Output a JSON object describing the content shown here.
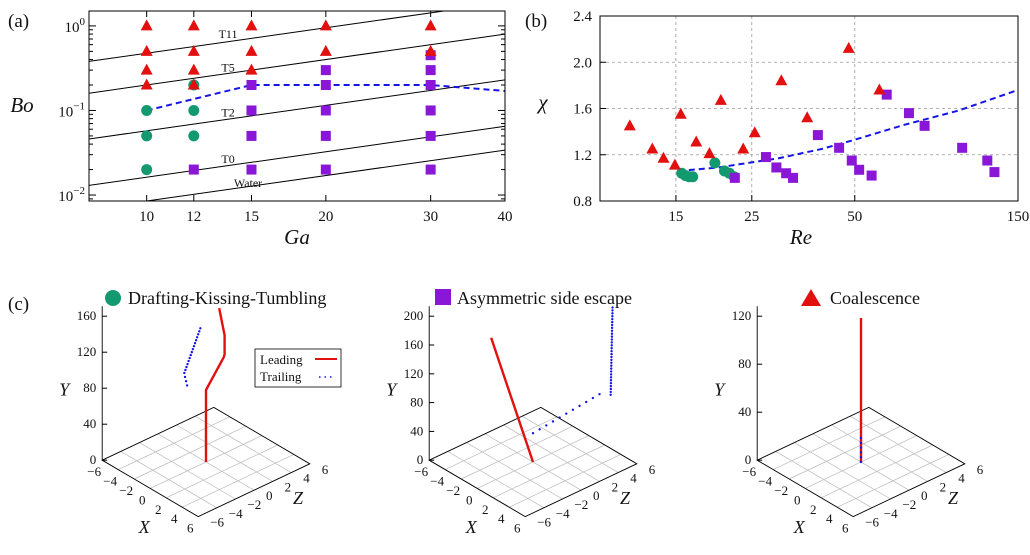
{
  "colors": {
    "dkt": "#13996f",
    "ase": "#8a16d8",
    "coal": "#e31010",
    "fit": "#1515e6",
    "line": "#000000"
  },
  "legend": {
    "dkt": "Drafting-Kissing-Tumbling",
    "ase": "Asymmetric side escape",
    "coal": "Coalescence"
  },
  "chart_data": [
    {
      "panel": "(a)",
      "type": "scatter",
      "xlabel": "Ga",
      "ylabel": "Bo",
      "xscale": "log",
      "yscale": "log",
      "xlim": [
        8,
        40
      ],
      "ylim": [
        0.0085,
        1.5
      ],
      "xticks": [
        "10",
        "12",
        "15",
        "20",
        "30",
        "40"
      ],
      "yticks": [
        {
          "v": 1,
          "label": "10^0"
        },
        {
          "v": 0.1,
          "label": "10^−1"
        },
        {
          "v": 0.01,
          "label": "10^−2"
        }
      ],
      "series": [
        {
          "key": "dkt",
          "marker": "circle",
          "points": [
            [
              10,
              0.1
            ],
            [
              10,
              0.05
            ],
            [
              10,
              0.02
            ],
            [
              12,
              0.2
            ],
            [
              12,
              0.1
            ],
            [
              12,
              0.05
            ]
          ]
        },
        {
          "key": "ase",
          "marker": "square",
          "points": [
            [
              12,
              0.02
            ],
            [
              15,
              0.2
            ],
            [
              15,
              0.1
            ],
            [
              15,
              0.05
            ],
            [
              15,
              0.02
            ],
            [
              20,
              0.3
            ],
            [
              20,
              0.2
            ],
            [
              20,
              0.1
            ],
            [
              20,
              0.05
            ],
            [
              20,
              0.02
            ],
            [
              30,
              0.45
            ],
            [
              30,
              0.3
            ],
            [
              30,
              0.2
            ],
            [
              30,
              0.1
            ],
            [
              30,
              0.05
            ],
            [
              30,
              0.02
            ]
          ]
        },
        {
          "key": "coal",
          "marker": "triangle",
          "points": [
            [
              10,
              1
            ],
            [
              10,
              0.5
            ],
            [
              10,
              0.3
            ],
            [
              10,
              0.2
            ],
            [
              12,
              1
            ],
            [
              12,
              0.5
            ],
            [
              12,
              0.3
            ],
            [
              12,
              0.2
            ],
            [
              15,
              1
            ],
            [
              15,
              0.5
            ],
            [
              15,
              0.3
            ],
            [
              20,
              1
            ],
            [
              20,
              0.5
            ],
            [
              30,
              1
            ],
            [
              30,
              0.5
            ]
          ]
        }
      ],
      "fit_line": [
        [
          10,
          0.1
        ],
        [
          15,
          0.2
        ],
        [
          20,
          0.2
        ],
        [
          30,
          0.2
        ],
        [
          40,
          0.17
        ]
      ],
      "iso_lines": [
        {
          "label": "T11",
          "x": [
            8,
            40
          ],
          "y": [
            0.38,
            1.9
          ],
          "label_at": [
            13.7,
            0.72
          ]
        },
        {
          "label": "T5",
          "x": [
            8,
            40
          ],
          "y": [
            0.16,
            0.8
          ],
          "label_at": [
            13.7,
            0.29
          ]
        },
        {
          "label": "T2",
          "x": [
            8,
            40
          ],
          "y": [
            0.046,
            0.23
          ],
          "label_at": [
            13.7,
            0.085
          ]
        },
        {
          "label": "T0",
          "x": [
            8,
            40
          ],
          "y": [
            0.013,
            0.065
          ],
          "label_at": [
            13.7,
            0.024
          ]
        },
        {
          "label": "Water",
          "x": [
            8,
            40
          ],
          "y": [
            0.0068,
            0.034
          ],
          "label_at": [
            14.8,
            0.0124
          ]
        }
      ]
    },
    {
      "panel": "(b)",
      "type": "scatter",
      "xlabel": "Re",
      "ylabel": "χ",
      "xscale": "log",
      "xlim": [
        9,
        150
      ],
      "ylim": [
        0.8,
        2.4
      ],
      "xticks": [
        "15",
        "25",
        "50",
        "150"
      ],
      "yticks": [
        "0.8",
        "1.2",
        "1.6",
        "2.0",
        "2.4"
      ],
      "grid": true,
      "series": [
        {
          "key": "dkt",
          "marker": "circle",
          "points": [
            [
              15.6,
              1.04
            ],
            [
              16.0,
              1.02
            ],
            [
              16.4,
              1.01
            ],
            [
              16.8,
              1.01
            ],
            [
              19.5,
              1.13
            ],
            [
              20.8,
              1.06
            ],
            [
              21.5,
              1.04
            ],
            [
              22.2,
              1.01
            ]
          ]
        },
        {
          "key": "ase",
          "marker": "square",
          "points": [
            [
              22.3,
              1.0
            ],
            [
              27.5,
              1.18
            ],
            [
              29.5,
              1.09
            ],
            [
              31.5,
              1.04
            ],
            [
              33.0,
              1.0
            ],
            [
              39,
              1.37
            ],
            [
              45,
              1.26
            ],
            [
              49,
              1.15
            ],
            [
              51.5,
              1.07
            ],
            [
              56,
              1.02
            ],
            [
              62,
              1.72
            ],
            [
              72,
              1.56
            ],
            [
              80,
              1.45
            ],
            [
              103,
              1.26
            ],
            [
              122,
              1.15
            ],
            [
              128,
              1.05
            ]
          ]
        },
        {
          "key": "coal",
          "marker": "triangle",
          "points": [
            [
              11,
              1.45
            ],
            [
              12.8,
              1.25
            ],
            [
              13.8,
              1.17
            ],
            [
              14.9,
              1.11
            ],
            [
              15.5,
              1.55
            ],
            [
              17.2,
              1.31
            ],
            [
              18.8,
              1.21
            ],
            [
              20.3,
              1.67
            ],
            [
              23.6,
              1.25
            ],
            [
              25.5,
              1.39
            ],
            [
              30.5,
              1.84
            ],
            [
              36.3,
              1.52
            ],
            [
              48,
              2.12
            ],
            [
              59,
              1.76
            ]
          ]
        }
      ],
      "fit_line": [
        [
          15.3,
          1.06
        ],
        [
          20,
          1.09
        ],
        [
          30,
          1.17
        ],
        [
          40,
          1.25
        ],
        [
          50,
          1.33
        ],
        [
          70,
          1.46
        ],
        [
          100,
          1.58
        ],
        [
          150,
          1.76
        ]
      ]
    },
    {
      "panel": "(c)",
      "type": "line",
      "subplots": [
        {
          "regime": "dkt",
          "ylim": [
            0,
            160
          ],
          "yticks": [
            "0",
            "40",
            "80",
            "120",
            "160"
          ],
          "leading": {
            "start": [
              0,
              0,
              0
            ],
            "end": [
              0,
              165,
              0
            ],
            "kink": [
              80,
              2.0,
              0
            ]
          },
          "trailing": {
            "start": [
              -3.5,
              75,
              0
            ],
            "mid": [
              0,
              85,
              0
            ],
            "end": [
              -3,
              155,
              0
            ]
          },
          "legend": [
            "Leading",
            "Trailing"
          ]
        },
        {
          "regime": "ase",
          "ylim": [
            0,
            200
          ],
          "yticks": [
            "0",
            "40",
            "80",
            "120",
            "160",
            "200"
          ],
          "leading": {
            "start": [
              0,
              0,
              0
            ],
            "end": [
              0,
              200,
              0
            ],
            "tilt": -4.5
          },
          "trailing": {
            "start": [
              0,
              40,
              0
            ],
            "mid": [
              5,
              80,
              0
            ],
            "end": [
              5,
              200,
              0
            ]
          }
        },
        {
          "regime": "coal",
          "ylim": [
            0,
            120
          ],
          "yticks": [
            "0",
            "40",
            "80",
            "120"
          ],
          "leading": {
            "start": [
              0,
              0,
              0
            ],
            "end": [
              0,
              120,
              0
            ]
          },
          "trailing": {
            "start": [
              0,
              0,
              0
            ],
            "end": [
              0,
              20,
              0
            ]
          }
        }
      ],
      "xlabel": "X",
      "ylabel": "Y",
      "zlabel": "Z",
      "xticks": [
        "−6",
        "−4",
        "−2",
        "0",
        "2",
        "4",
        "6"
      ],
      "zticks": [
        "−6",
        "−4",
        "−2",
        "0",
        "2",
        "4",
        "6"
      ]
    }
  ]
}
